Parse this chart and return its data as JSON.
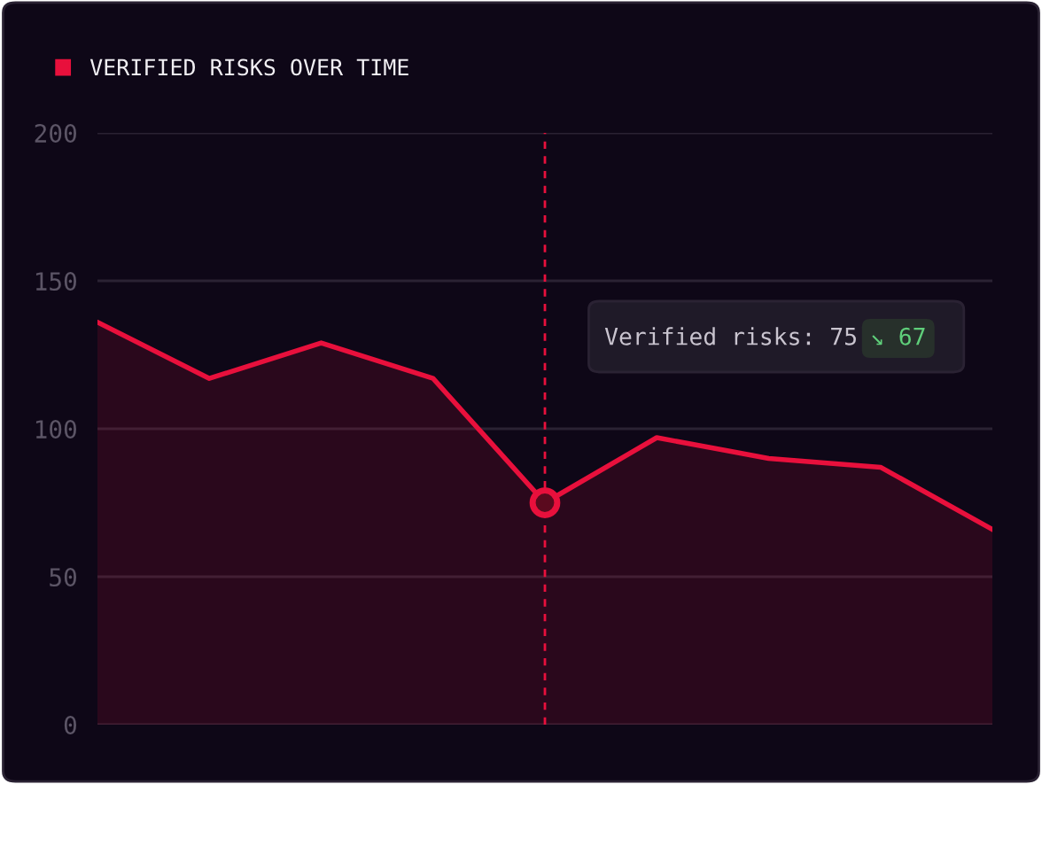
{
  "chart_data": {
    "type": "area",
    "categories": [
      null,
      null,
      null,
      null,
      null,
      null,
      null,
      null,
      null
    ],
    "series": [
      {
        "name": "VERIFIED RISKS OVER TIME",
        "color": "#e8103c",
        "values": [
          136,
          117,
          129,
          117,
          75,
          97,
          90,
          87,
          66
        ]
      }
    ],
    "ylim": [
      0,
      200
    ],
    "yticks": [
      0,
      50,
      100,
      150,
      200
    ],
    "tick_labels": "y",
    "grid": "y",
    "legend": "top left",
    "annotations": [
      "Verified risks: 75",
      "↘ 67"
    ]
  }
}
